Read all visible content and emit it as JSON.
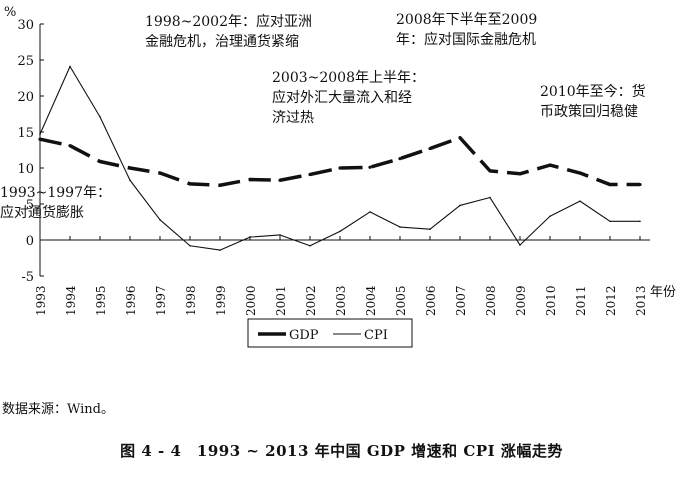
{
  "chart_data": {
    "type": "line",
    "y_unit": "%",
    "x_unit": "年份",
    "categories": [
      "1993",
      "1994",
      "1995",
      "1996",
      "1997",
      "1998",
      "1999",
      "2000",
      "2001",
      "2002",
      "2003",
      "2004",
      "2005",
      "2006",
      "2007",
      "2008",
      "2009",
      "2010",
      "2011",
      "2012",
      "2013"
    ],
    "ylim": [
      -5,
      30
    ],
    "yticks": [
      -5,
      0,
      5,
      10,
      15,
      20,
      25,
      30
    ],
    "grid": false,
    "legend_position": "bottom-center",
    "series": [
      {
        "name": "GDP",
        "style": "thick-dashed",
        "color": "#111111",
        "values": [
          14.0,
          13.1,
          10.9,
          10.0,
          9.3,
          7.8,
          7.6,
          8.4,
          8.3,
          9.1,
          10.0,
          10.1,
          11.3,
          12.7,
          14.2,
          9.6,
          9.2,
          10.4,
          9.3,
          7.7,
          7.7
        ]
      },
      {
        "name": "CPI",
        "style": "thin-solid",
        "color": "#111111",
        "values": [
          14.7,
          24.1,
          17.1,
          8.3,
          2.8,
          -0.8,
          -1.4,
          0.4,
          0.7,
          -0.8,
          1.2,
          3.9,
          1.8,
          1.5,
          4.8,
          5.9,
          -0.7,
          3.3,
          5.4,
          2.6,
          2.6
        ]
      }
    ],
    "annotations": [
      {
        "id": "a1",
        "text": "1998~2002年：应对亚洲\n金融危机，治理通货紧缩"
      },
      {
        "id": "a2",
        "text": "2008年下半年至2009\n年：应对国际金融危机"
      },
      {
        "id": "a3",
        "text": "2003~2008年上半年：\n应对外汇大量流入和经\n济过热"
      },
      {
        "id": "a4",
        "text": "2010年至今：货\n币政策回归稳健"
      },
      {
        "id": "a5",
        "text": "1993~1997年：\n应对通货膨胀"
      }
    ]
  },
  "source_note": "数据来源：Wind。",
  "caption": "图 4 - 4　1993 ~ 2013 年中国 GDP 增速和 CPI 涨幅走势"
}
